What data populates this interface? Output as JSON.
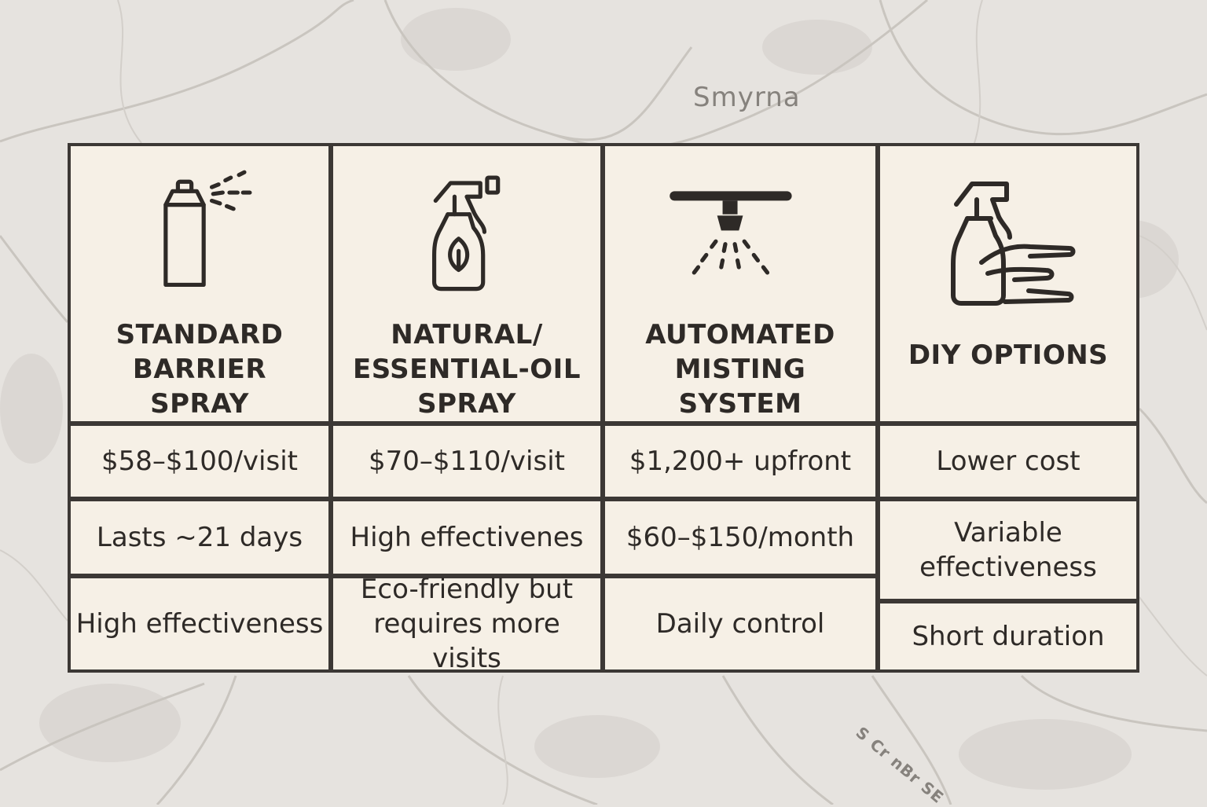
{
  "map": {
    "city_label": "Smyrna",
    "street_label": "S Cr nBr SE"
  },
  "columns": [
    {
      "icon": "aerosol-spray-can-icon",
      "title": "STANDARD BARRIER SPRAY"
    },
    {
      "icon": "leaf-spray-bottle-icon",
      "title": "NATURAL/ ESSENTIAL-OIL SPRAY"
    },
    {
      "icon": "misting-nozzle-icon",
      "title": "AUTOMATED MISTING SYSTEM"
    },
    {
      "icon": "hand-spray-bottle-icon",
      "title": "DIY OPTIONS"
    }
  ],
  "rows": {
    "col1": [
      "$58–$100/visit",
      "Lasts ~21 days",
      "High effectiveness"
    ],
    "col2": [
      "$70–$110/visit",
      "High effectivenes",
      "Eco-friendly but requires more visits"
    ],
    "col3": [
      "$1,200+ upfront",
      "$60–$150/month",
      "Daily control"
    ],
    "col4": [
      "Lower cost",
      "Variable effectiveness",
      "Short duration"
    ]
  },
  "colors": {
    "background": "#e6e3df",
    "cell": "#f6f0e6",
    "border": "#3c3835",
    "text": "#2e2a27"
  }
}
